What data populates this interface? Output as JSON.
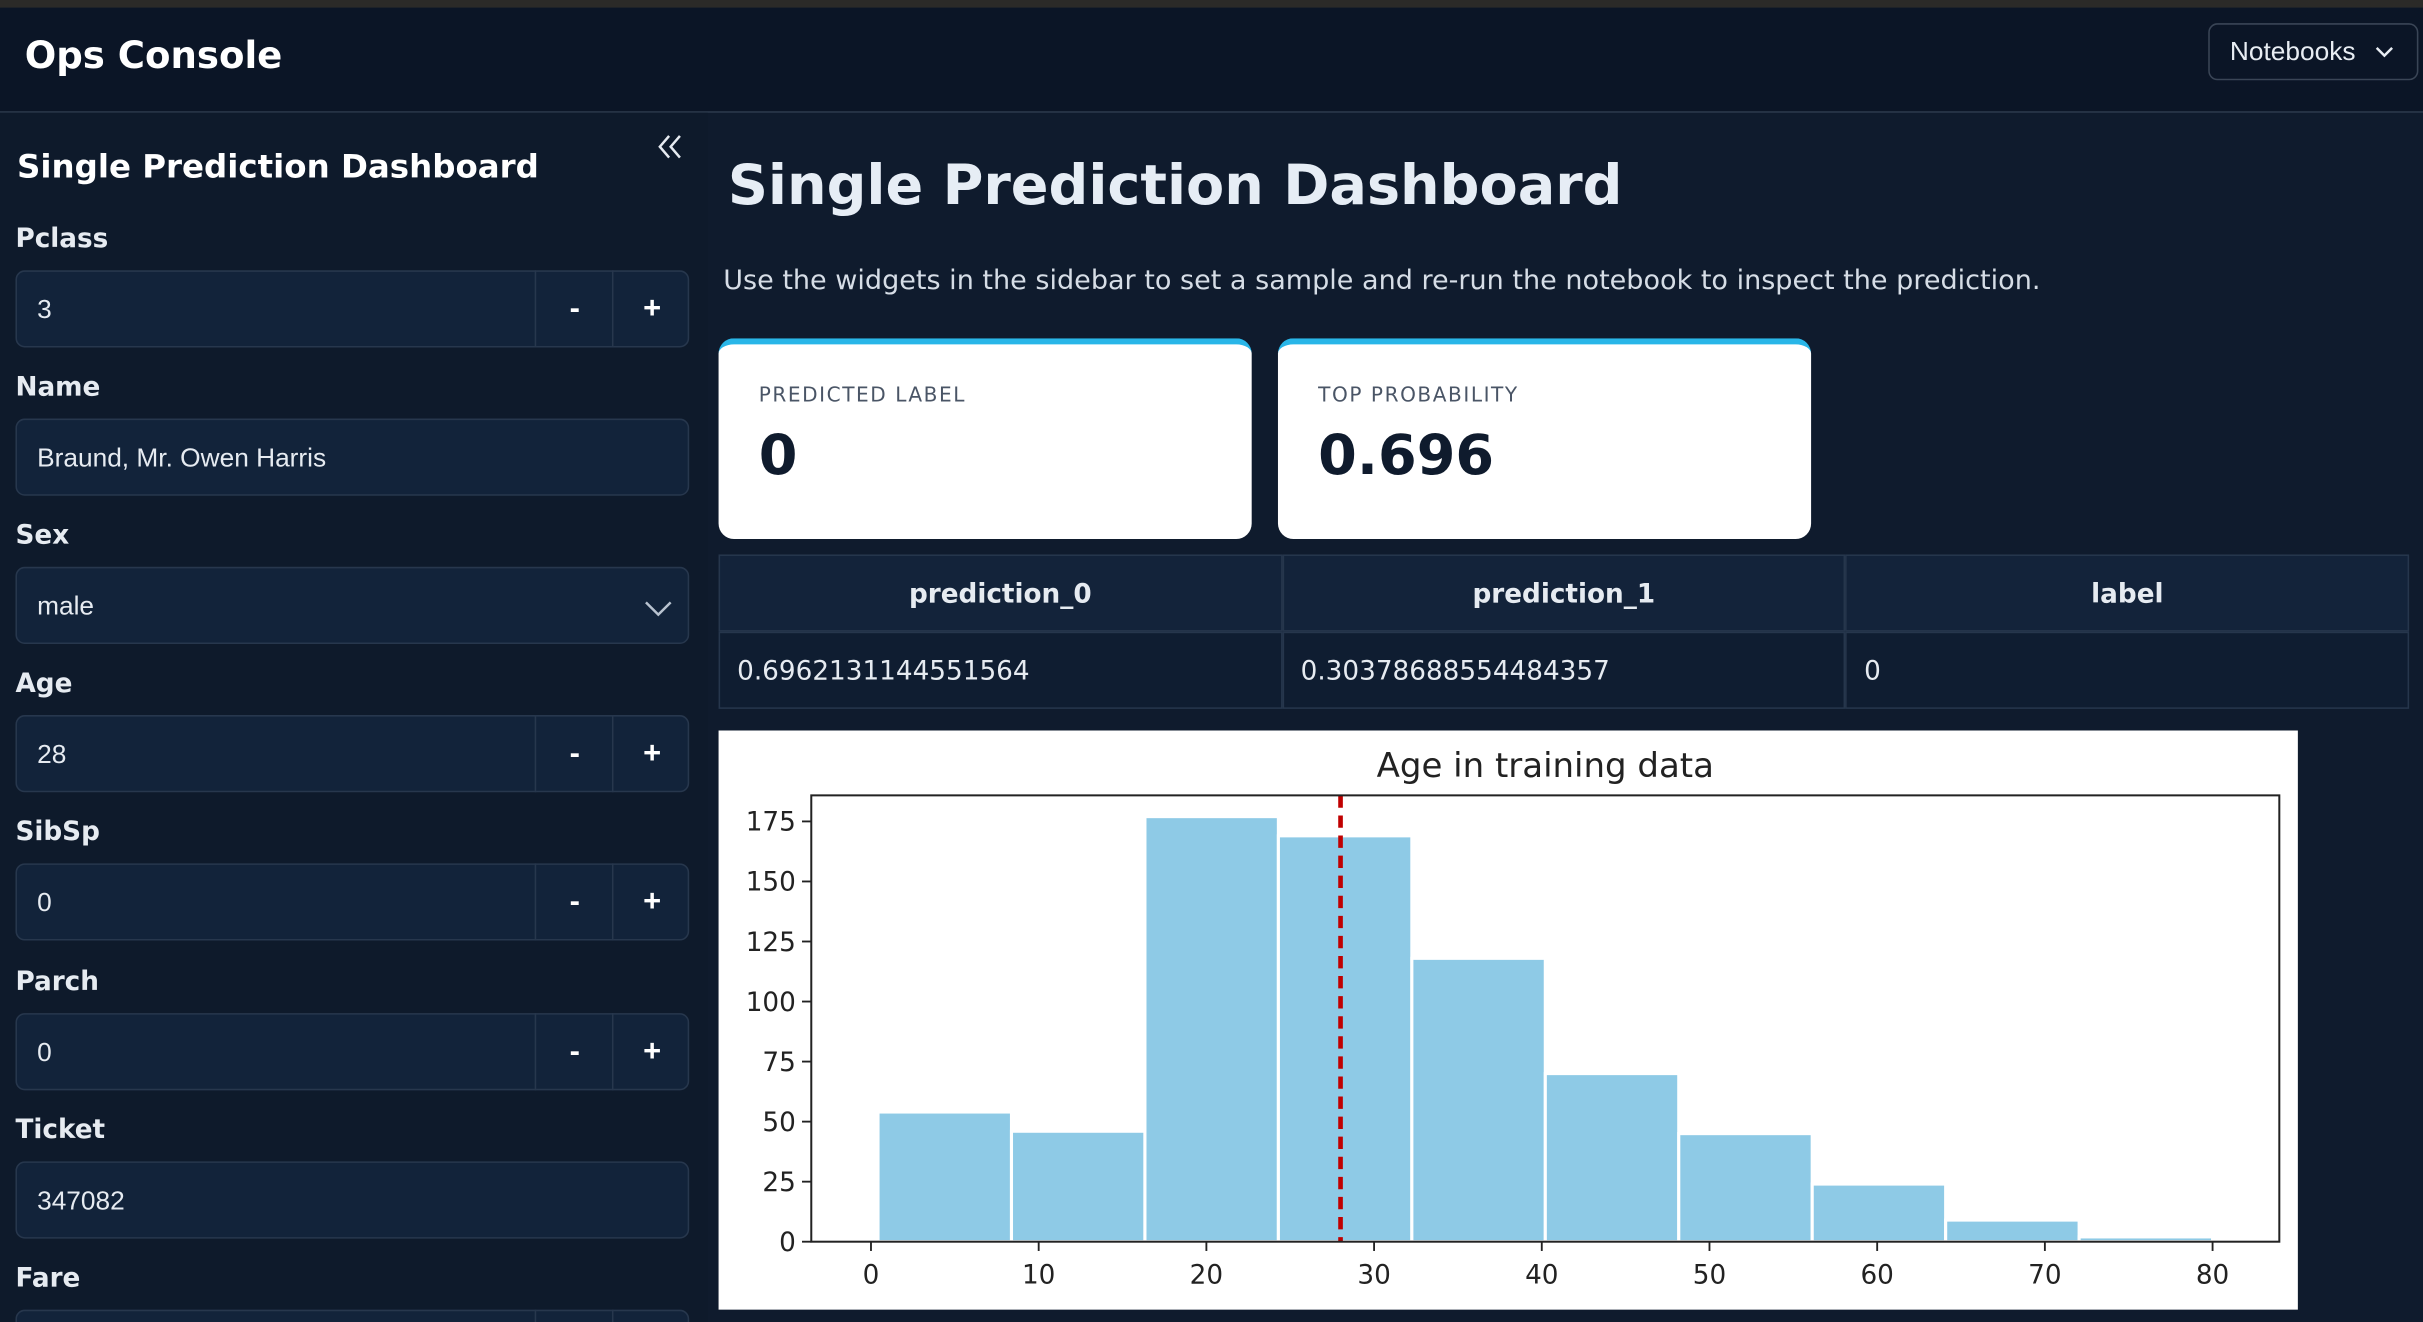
{
  "header": {
    "title": "Ops Console",
    "menu": "Notebooks"
  },
  "sidebar": {
    "title": "Single Prediction Dashboard",
    "fields": [
      {
        "label": "Pclass",
        "value": "3",
        "input": "number"
      },
      {
        "label": "Name",
        "value": "Braund, Mr. Owen Harris",
        "input": "text"
      },
      {
        "label": "Sex",
        "value": "male",
        "input": "select"
      },
      {
        "label": "Age",
        "value": "28",
        "input": "number"
      },
      {
        "label": "SibSp",
        "value": "0",
        "input": "number"
      },
      {
        "label": "Parch",
        "value": "0",
        "input": "number"
      },
      {
        "label": "Ticket",
        "value": "347082",
        "input": "text"
      },
      {
        "label": "Fare",
        "input": "number"
      }
    ],
    "stepper": [
      "-",
      "+"
    ]
  },
  "main": {
    "title": "Single Prediction Dashboard",
    "description": "Use the widgets in the sidebar to set a sample and re-run the notebook to inspect the prediction."
  },
  "metrics": [
    {
      "label": "PREDICTED LABEL",
      "value": "0"
    },
    {
      "label": "TOP PROBABILITY",
      "value": "0.696"
    }
  ],
  "table": {
    "columns": [
      "prediction_0",
      "prediction_1",
      "label"
    ],
    "rows": [
      [
        "0.6962131144551564",
        "0.30378688554484357",
        "0"
      ]
    ]
  },
  "chart_data": {
    "type": "histogram",
    "title": "Age in training data",
    "bins": [
      0.42,
      8.378,
      16.336,
      24.294,
      32.252,
      40.21,
      48.168,
      56.126,
      64.084,
      72.042,
      80
    ],
    "values": [
      54,
      46,
      177,
      169,
      118,
      70,
      45,
      24,
      9,
      2
    ],
    "color": "#8ecae6",
    "reference_line": {
      "value": 28,
      "color": "#c00000"
    },
    "xlim": [
      -3.56,
      83.98
    ],
    "ylim": [
      0,
      185.85
    ],
    "xticks": [
      0,
      10,
      20,
      30,
      40,
      50,
      60,
      70,
      80
    ],
    "yticks": [
      0,
      25,
      50,
      75,
      100,
      125,
      150,
      175
    ]
  }
}
